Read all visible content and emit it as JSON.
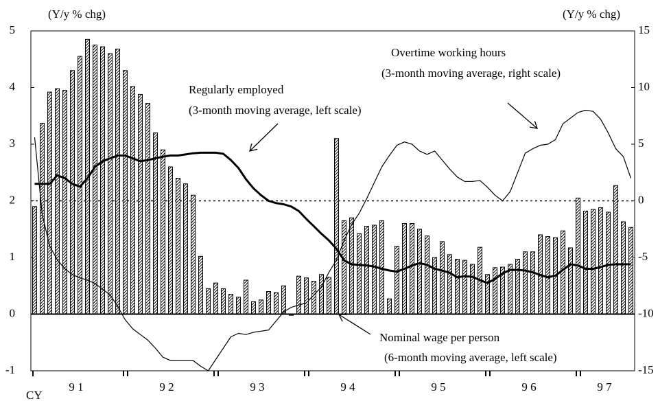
{
  "chart_data": {
    "type": "bar-line",
    "y_unit_label": "(Y/y % chg)",
    "y2_unit_label": "(Y/y % chg)",
    "x_axis_label": "CY",
    "x_group_labels": [
      "9 1",
      "9 2",
      "9 3",
      "9 4",
      "9 5",
      "9 6",
      "9 7"
    ],
    "group_size": 12,
    "categories": [
      null,
      null,
      null,
      null,
      null,
      null,
      null,
      null,
      null,
      null,
      null,
      null,
      null,
      null,
      null,
      null,
      null,
      null,
      null,
      null,
      null,
      null,
      null,
      null,
      null,
      null,
      null,
      null,
      null,
      null,
      null,
      null,
      null,
      null,
      null,
      null,
      null,
      null,
      null,
      null,
      null,
      null,
      null,
      null,
      null,
      null,
      null,
      null,
      null,
      null,
      null,
      null,
      null,
      null,
      null,
      null,
      null,
      null,
      null,
      null,
      null,
      null,
      null,
      null,
      null,
      null,
      null,
      null,
      null,
      null,
      null,
      null,
      null,
      null,
      null,
      null,
      null,
      null,
      null,
      null
    ],
    "ylim": [
      -1,
      5
    ],
    "yticks": [
      -1,
      0,
      1,
      2,
      3,
      4,
      5
    ],
    "y2lim": [
      -15,
      15
    ],
    "y2ticks": [
      -15,
      -10,
      -5,
      0,
      5,
      10,
      15
    ],
    "reference_line": {
      "axis": "y2",
      "value": 0
    },
    "series": [
      {
        "name": "Nominal wage per person",
        "note": "(6-month moving average, left scale)",
        "kind": "bar",
        "color": "#000000",
        "values": [
          1.9,
          3.37,
          3.92,
          3.98,
          3.95,
          4.3,
          4.55,
          4.85,
          4.75,
          4.72,
          4.6,
          4.68,
          4.3,
          4.02,
          3.88,
          3.72,
          3.2,
          2.9,
          2.6,
          2.4,
          2.3,
          2.1,
          1.02,
          0.45,
          0.55,
          0.45,
          0.35,
          0.3,
          0.6,
          0.22,
          0.25,
          0.4,
          0.38,
          0.5,
          -0.02,
          0.67,
          0.64,
          0.58,
          0.7,
          0.65,
          3.1,
          1.65,
          1.7,
          1.42,
          1.55,
          1.57,
          1.65,
          0.27,
          1.2,
          1.6,
          1.6,
          1.5,
          1.38,
          1.0,
          1.28,
          1.05,
          0.97,
          0.95,
          0.88,
          1.18,
          0.7,
          0.82,
          0.83,
          0.88,
          0.97,
          1.1,
          1.1,
          1.4,
          1.37,
          1.35,
          1.47,
          1.17,
          2.05,
          1.82,
          1.85,
          1.88,
          1.8,
          2.27,
          1.63,
          1.53
        ]
      },
      {
        "name": "Regularly employed",
        "note": "(3-month moving average, left scale)",
        "kind": "line",
        "width": 3,
        "color": "#000000",
        "values": [
          2.3,
          2.3,
          2.3,
          2.45,
          2.4,
          2.3,
          2.25,
          2.4,
          2.6,
          2.7,
          2.75,
          2.8,
          2.8,
          2.75,
          2.7,
          2.72,
          2.75,
          2.78,
          2.8,
          2.8,
          2.82,
          2.84,
          2.85,
          2.85,
          2.85,
          2.83,
          2.72,
          2.58,
          2.38,
          2.22,
          2.1,
          2.0,
          1.96,
          1.94,
          1.9,
          1.82,
          1.68,
          1.55,
          1.42,
          1.3,
          1.15,
          0.95,
          0.88,
          0.87,
          0.86,
          0.84,
          0.8,
          0.77,
          0.75,
          0.8,
          0.86,
          0.9,
          0.87,
          0.8,
          0.77,
          0.73,
          0.65,
          0.67,
          0.66,
          0.6,
          0.55,
          0.62,
          0.72,
          0.78,
          0.78,
          0.77,
          0.74,
          0.69,
          0.65,
          0.68,
          0.78,
          0.88,
          0.86,
          0.8,
          0.8,
          0.83,
          0.87,
          0.88,
          0.88,
          0.88
        ]
      },
      {
        "name": "Overtime working hours",
        "note": "(3-month moving average, right scale)",
        "kind": "line",
        "width": 1.2,
        "axis": "y2",
        "color": "#000000",
        "values": [
          5.6,
          -1.2,
          -4.0,
          -5.2,
          -6.0,
          -6.5,
          -6.8,
          -7.0,
          -7.3,
          -7.8,
          -8.3,
          -9.3,
          -10.5,
          -11.3,
          -11.8,
          -12.3,
          -13.0,
          -13.8,
          -14.1,
          -14.1,
          -14.1,
          -14.1,
          -14.6,
          -15.0,
          -14.0,
          -13.0,
          -12.0,
          -11.7,
          -11.8,
          -11.6,
          -11.5,
          -11.4,
          -10.6,
          -9.8,
          -9.4,
          -9.2,
          -9.0,
          -8.3,
          -7.6,
          -6.3,
          -5.2,
          -3.5,
          -2.1,
          -1.1,
          0.2,
          1.6,
          3.0,
          4.0,
          4.9,
          5.2,
          5.0,
          4.4,
          4.1,
          4.4,
          3.6,
          2.8,
          2.1,
          1.7,
          1.7,
          1.8,
          1.2,
          0.5,
          0.0,
          0.8,
          2.5,
          4.2,
          4.6,
          4.9,
          5.0,
          5.4,
          6.8,
          7.3,
          7.8,
          8.0,
          7.9,
          7.2,
          6.0,
          4.6,
          3.9,
          2.0
        ]
      }
    ]
  }
}
